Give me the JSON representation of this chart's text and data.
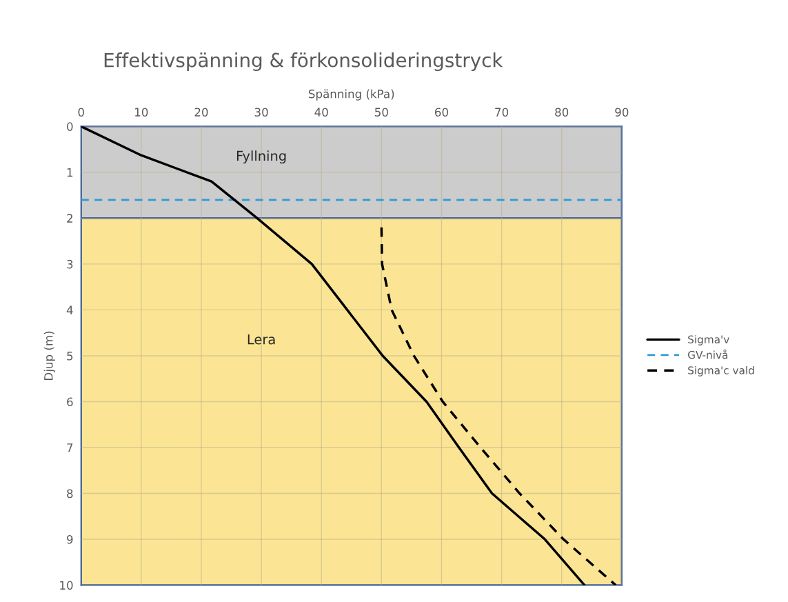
{
  "chart_data": {
    "type": "line",
    "title": "Effektivspänning & förkonsolideringstryck",
    "xlabel": "Spänning (kPa)",
    "ylabel": "Djup (m)",
    "xlim": [
      0,
      90
    ],
    "xticks": [
      0,
      10,
      20,
      30,
      40,
      50,
      60,
      70,
      80,
      90
    ],
    "ylim": [
      10,
      0
    ],
    "yticks": [
      0,
      1,
      2,
      3,
      4,
      5,
      6,
      7,
      8,
      9,
      10
    ],
    "grid": true,
    "legend": "right",
    "series": [
      {
        "name": "Sigma'v",
        "color": "#000000",
        "line_style": "solid",
        "x": [
          0,
          10,
          21.7,
          29.3,
          38.4,
          44.3,
          50.2,
          57.5,
          62.9,
          68.4,
          77.2,
          83.8
        ],
        "values": [
          0,
          0.63,
          1.2,
          2,
          3,
          4,
          5,
          6,
          7,
          8,
          9,
          10
        ]
      },
      {
        "name": "Sigma'c vald",
        "color": "#000000",
        "line_style": "dashed",
        "x": [
          50,
          50.1,
          51.7,
          55.4,
          60.2,
          66.5,
          73,
          80.3,
          89
        ],
        "values": [
          2.2,
          3,
          4,
          5,
          6,
          7,
          8,
          9,
          10
        ]
      }
    ],
    "ref_lines": [
      {
        "axis": "y",
        "value": 1.6,
        "label": "GV-nivå",
        "color": "#2e9bd6",
        "line_style": "dashed"
      }
    ],
    "bands": [
      {
        "axis": "y",
        "from": 0,
        "to": 2,
        "label": "Fyllning",
        "color": "#cccccc"
      },
      {
        "axis": "y",
        "from": 2,
        "to": 10,
        "label": "Lera",
        "color": "#fbe594"
      }
    ]
  }
}
